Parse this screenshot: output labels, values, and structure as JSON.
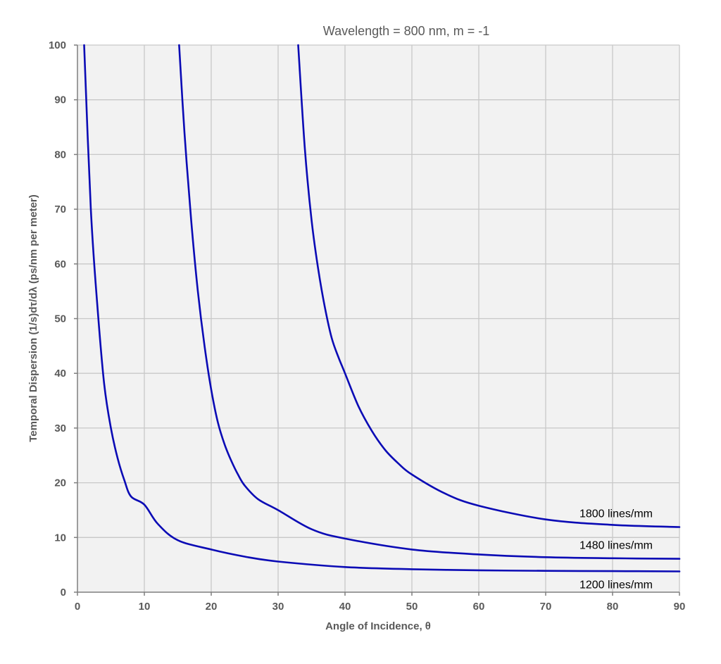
{
  "chart_data": {
    "type": "line",
    "title": "Wavelength = 800 nm, m = -1",
    "xlabel": "Angle of Incidence, θ",
    "ylabel": "Temporal Dispersion (1/s)dτ/dλ (ps/nm per meter)",
    "xlim": [
      0,
      90
    ],
    "ylim": [
      0,
      100
    ],
    "xticks": [
      0,
      10,
      20,
      30,
      40,
      50,
      60,
      70,
      80,
      90
    ],
    "yticks": [
      0,
      10,
      20,
      30,
      40,
      50,
      60,
      70,
      80,
      90,
      100
    ],
    "grid": true,
    "colors": {
      "series": "#0b0bb5",
      "plot_background": "#f2f2f2",
      "grid": "#c8c8c8",
      "axis_text": "#595959"
    },
    "series": [
      {
        "name": "1200 lines/mm",
        "x": [
          1.0,
          2,
          3,
          4,
          5,
          6,
          7,
          8,
          10,
          12,
          15,
          20,
          25,
          30,
          40,
          50,
          60,
          70,
          80,
          90
        ],
        "y": [
          100,
          70,
          52,
          38,
          30,
          24.5,
          20.5,
          17.5,
          16,
          12.5,
          9.5,
          7.8,
          6.5,
          5.6,
          4.6,
          4.2,
          4.0,
          3.9,
          3.85,
          3.8
        ]
      },
      {
        "name": "1480 lines/mm",
        "x": [
          15.2,
          16,
          17,
          18,
          19,
          20,
          21,
          22,
          23,
          24,
          25,
          27,
          30,
          35,
          40,
          50,
          60,
          70,
          80,
          90
        ],
        "y": [
          100,
          84,
          68,
          55,
          45,
          37,
          31,
          27,
          24,
          21.5,
          19.5,
          17,
          15,
          11.5,
          9.8,
          7.8,
          6.9,
          6.4,
          6.2,
          6.1
        ]
      },
      {
        "name": "1800 lines/mm",
        "x": [
          33.0,
          34,
          35,
          36,
          37,
          38,
          39,
          40,
          42,
          44,
          46,
          48,
          50,
          55,
          60,
          70,
          80,
          90
        ],
        "y": [
          100,
          81,
          68,
          59,
          52,
          46.5,
          43,
          40,
          34,
          29.5,
          26,
          23.5,
          21.5,
          18,
          15.8,
          13.3,
          12.3,
          11.9
        ]
      }
    ]
  }
}
